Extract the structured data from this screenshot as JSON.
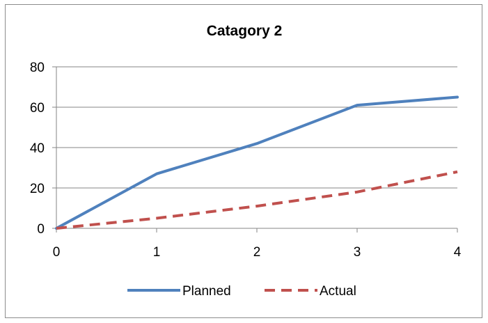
{
  "chart_data": {
    "type": "line",
    "title": "Catagory 2",
    "xlabel": "",
    "ylabel": "",
    "x": [
      0,
      1,
      2,
      3,
      4
    ],
    "xlim": [
      0,
      4
    ],
    "ylim": [
      0,
      80
    ],
    "x_ticks": [
      "0",
      "1",
      "2",
      "3",
      "4"
    ],
    "y_ticks": [
      "0",
      "20",
      "40",
      "60",
      "80"
    ],
    "grid": "horizontal",
    "legend_position": "bottom",
    "series": [
      {
        "name": "Planned",
        "values": [
          0,
          27,
          42,
          61,
          65
        ],
        "color": "#4F81BD",
        "style": "solid"
      },
      {
        "name": "Actual",
        "values": [
          0,
          5,
          11,
          18,
          28
        ],
        "color": "#C0504D",
        "style": "dashed"
      }
    ]
  }
}
